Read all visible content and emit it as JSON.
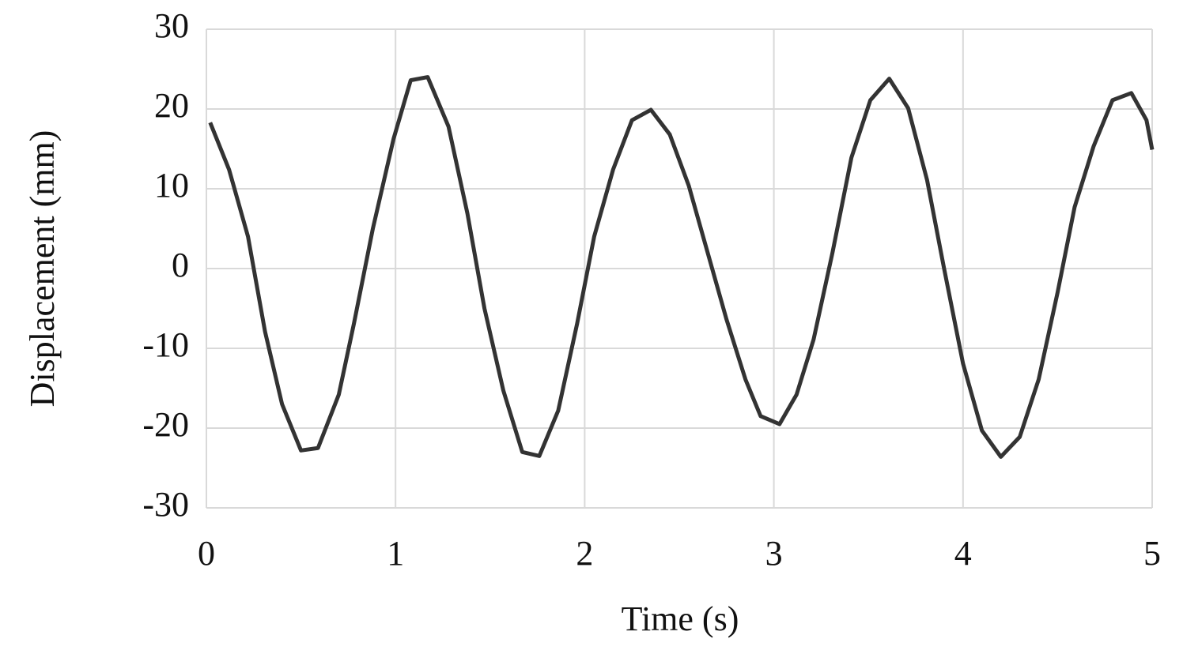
{
  "chart_data": {
    "type": "line",
    "x_label": "Time (s)",
    "y_label": "Displacement (mm)",
    "x": [
      0.02,
      0.12,
      0.22,
      0.31,
      0.4,
      0.5,
      0.59,
      0.7,
      0.78,
      0.88,
      0.99,
      1.08,
      1.17,
      1.28,
      1.38,
      1.47,
      1.57,
      1.67,
      1.76,
      1.86,
      1.96,
      2.05,
      2.15,
      2.25,
      2.35,
      2.45,
      2.55,
      2.65,
      2.75,
      2.85,
      2.93,
      3.03,
      3.12,
      3.21,
      3.31,
      3.41,
      3.51,
      3.61,
      3.71,
      3.81,
      3.9,
      4.0,
      4.1,
      4.2,
      4.3,
      4.4,
      4.5,
      4.59,
      4.69,
      4.79,
      4.89,
      4.97,
      5.0
    ],
    "series": [
      {
        "name": "Displacement",
        "color": "#333333",
        "values": [
          18.3,
          12.4,
          4.0,
          -7.9,
          -17.0,
          -22.8,
          -22.5,
          -15.8,
          -6.9,
          5.0,
          16.3,
          23.6,
          24.0,
          17.8,
          6.9,
          -5.0,
          -15.3,
          -23.0,
          -23.5,
          -17.8,
          -6.9,
          4.0,
          12.4,
          18.6,
          19.9,
          16.8,
          10.4,
          2.0,
          -6.4,
          -13.9,
          -18.5,
          -19.5,
          -15.8,
          -8.9,
          2.0,
          13.9,
          21.1,
          23.8,
          20.1,
          11.1,
          0,
          -11.9,
          -20.3,
          -23.6,
          -21.1,
          -13.9,
          -3.0,
          7.7,
          15.3,
          21.1,
          22.0,
          18.6,
          14.9
        ]
      }
    ],
    "xlim": [
      0,
      5
    ],
    "xticks": [
      0,
      1,
      2,
      3,
      4,
      5
    ],
    "ylim": [
      -30,
      30
    ],
    "yticks": [
      -30,
      -20,
      -10,
      0,
      10,
      20,
      30
    ],
    "grid": true
  }
}
